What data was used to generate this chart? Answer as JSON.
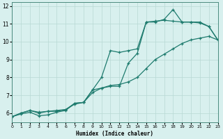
{
  "xlabel": "Humidex (Indice chaleur)",
  "background_color": "#d8f0ee",
  "grid_color": "#b8d8d4",
  "line_color": "#1e7b6e",
  "xlim": [
    0,
    23
  ],
  "ylim": [
    5.5,
    12.2
  ],
  "xticks": [
    0,
    1,
    2,
    3,
    4,
    5,
    6,
    7,
    8,
    9,
    10,
    11,
    12,
    13,
    14,
    15,
    16,
    17,
    18,
    19,
    20,
    21,
    22,
    23
  ],
  "yticks": [
    6,
    7,
    8,
    9,
    10,
    11,
    12
  ],
  "line1_x": [
    0,
    1,
    2,
    3,
    4,
    5,
    6,
    7,
    8,
    9,
    10,
    11,
    12,
    13,
    14,
    15,
    16,
    17,
    18,
    19,
    20,
    21,
    22,
    23
  ],
  "line1_y": [
    5.8,
    5.95,
    6.05,
    5.85,
    5.9,
    6.05,
    6.15,
    6.55,
    6.6,
    7.15,
    7.4,
    7.55,
    7.6,
    7.75,
    8.0,
    8.5,
    9.0,
    9.3,
    9.6,
    9.9,
    10.1,
    10.2,
    10.3,
    10.1
  ],
  "line2_x": [
    0,
    1,
    2,
    3,
    4,
    5,
    6,
    7,
    8,
    9,
    10,
    11,
    12,
    13,
    14,
    15,
    16,
    17,
    18,
    19,
    20,
    21,
    22,
    23
  ],
  "line2_y": [
    5.8,
    6.0,
    6.15,
    6.05,
    6.1,
    6.15,
    6.2,
    6.55,
    6.6,
    7.3,
    8.0,
    9.5,
    9.4,
    9.5,
    9.6,
    11.1,
    11.15,
    11.2,
    11.15,
    11.1,
    11.1,
    11.05,
    10.85,
    10.1
  ],
  "line3_x": [
    0,
    1,
    2,
    3,
    4,
    5,
    6,
    7,
    8,
    9,
    10,
    11,
    12,
    13,
    14,
    15,
    16,
    17,
    18,
    19,
    20,
    21,
    22,
    23
  ],
  "line3_y": [
    5.8,
    6.0,
    6.15,
    6.0,
    6.1,
    6.1,
    6.2,
    6.5,
    6.6,
    7.3,
    7.4,
    7.5,
    7.5,
    8.8,
    9.35,
    11.1,
    11.1,
    11.25,
    11.8,
    11.1,
    11.1,
    11.1,
    10.85,
    10.1
  ]
}
